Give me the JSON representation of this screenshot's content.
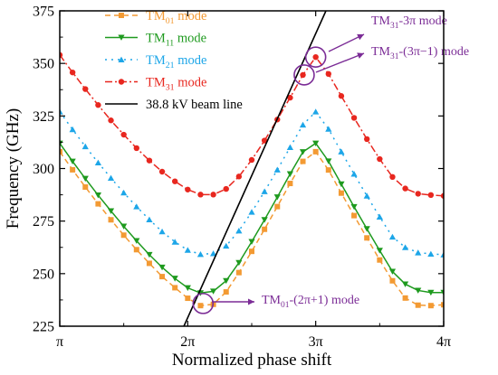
{
  "chart_data": {
    "type": "line",
    "xlabel": "Normalized phase shift",
    "ylabel": "Frequency (GHz)",
    "xlim": [
      1,
      4
    ],
    "ylim": [
      225,
      375
    ],
    "x_ticks": [
      {
        "value": 1,
        "label": "π"
      },
      {
        "value": 2,
        "label": "2π"
      },
      {
        "value": 3,
        "label": "3π"
      },
      {
        "value": 4,
        "label": "4π"
      }
    ],
    "y_ticks": [
      225,
      250,
      275,
      300,
      325,
      350,
      375
    ],
    "x_unit": "π",
    "x": [
      1.0,
      1.1,
      1.2,
      1.3,
      1.4,
      1.5,
      1.6,
      1.7,
      1.8,
      1.9,
      2.0,
      2.1,
      2.2,
      2.3,
      2.4,
      2.5,
      2.6,
      2.7,
      2.8,
      2.9,
      3.0,
      3.1,
      3.2,
      3.3,
      3.4,
      3.5,
      3.6,
      3.7,
      3.8,
      3.9,
      4.0
    ],
    "series": [
      {
        "name": "TM01 mode",
        "name_base": "TM",
        "name_sub": "01",
        "name_suffix": " mode",
        "color": "#F39A33",
        "marker": "square",
        "dash": "6,4",
        "values": [
          308,
          299.4,
          291.2,
          283.2,
          275.6,
          268.3,
          261.4,
          254.9,
          248.6,
          243.3,
          238.3,
          234.8,
          235.4,
          241.3,
          250.5,
          260.6,
          271.1,
          281.9,
          292.9,
          303.4,
          308,
          299.3,
          288.3,
          277.6,
          267,
          256.5,
          246.6,
          238.4,
          235,
          234.8,
          235.2
        ]
      },
      {
        "name": "TM11 mode",
        "name_base": "TM",
        "name_sub": "11",
        "name_suffix": " mode",
        "color": "#1E9A1E",
        "marker": "triangle-down",
        "dash": "",
        "values": [
          312,
          303.4,
          295.2,
          287.3,
          279.8,
          272.5,
          265.6,
          259,
          253,
          247.7,
          243.2,
          240.8,
          241.6,
          246.6,
          255.2,
          265.2,
          275.6,
          286.4,
          297.4,
          307.9,
          312,
          303.5,
          292.6,
          281.8,
          271.3,
          261,
          251,
          245,
          242,
          241,
          241
        ]
      },
      {
        "name": "TM21 mode",
        "name_base": "TM",
        "name_sub": "21",
        "name_suffix": " mode",
        "color": "#1DA6E8",
        "marker": "triangle-up",
        "dash": "2,5",
        "values": [
          327,
          318.6,
          310.5,
          302.8,
          295.5,
          288.5,
          281.9,
          275.7,
          270,
          265.1,
          261.2,
          259.2,
          259.6,
          263.2,
          270.4,
          279.3,
          289.1,
          299.4,
          310.1,
          320.8,
          327,
          318.8,
          308,
          297.4,
          287,
          277,
          267.5,
          262.5,
          260,
          259.4,
          259
        ]
      },
      {
        "name": "TM31 mode",
        "name_base": "TM",
        "name_sub": "31",
        "name_suffix": " mode",
        "color": "#E8271F",
        "marker": "circle",
        "dash": "8,3,2,3",
        "values": [
          354,
          345.7,
          337.8,
          330.2,
          322.9,
          316.1,
          309.7,
          303.8,
          298.5,
          293.9,
          290,
          287.6,
          287.6,
          290.3,
          296.2,
          304.1,
          313.3,
          323.3,
          333.7,
          344.5,
          353,
          345,
          334.5,
          324.1,
          314,
          304.5,
          296,
          290.5,
          288,
          287.4,
          287
        ]
      },
      {
        "name": "38.8 kV beam line",
        "name_base": "38.8 kV beam line",
        "name_sub": "",
        "name_suffix": "",
        "color": "#000000",
        "marker": "none",
        "dash": "",
        "x": [
          1.97,
          3.08
        ],
        "values": [
          225,
          375
        ]
      }
    ],
    "annotations": [
      {
        "base": "TM",
        "sub": "31",
        "suffix": "-3π mode",
        "color": "#7B2C96",
        "target": [
          3.0,
          353
        ]
      },
      {
        "base": "TM",
        "sub": "31",
        "suffix": "-(3π−1) mode",
        "color": "#7B2C96",
        "target": [
          2.91,
          344.5
        ]
      },
      {
        "base": "TM",
        "sub": "01",
        "suffix": "-(2π+1) mode",
        "color": "#7B2C96",
        "target": [
          2.12,
          235.8
        ]
      }
    ],
    "legend_position": "top-left",
    "grid": false
  }
}
